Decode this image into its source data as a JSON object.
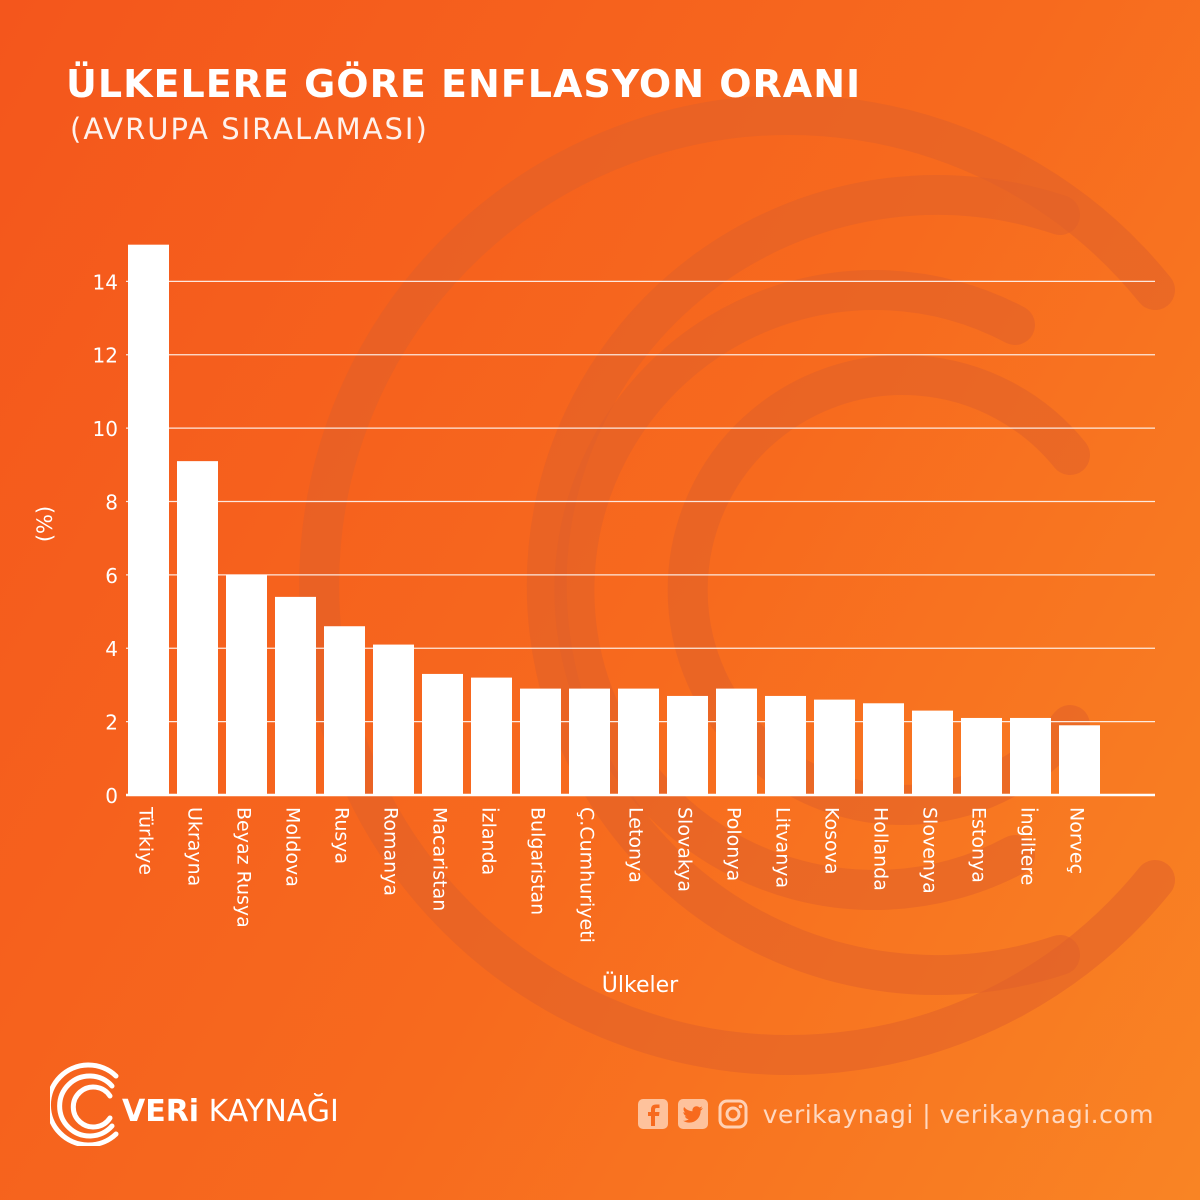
{
  "header": {
    "title": "ÜLKELERE GÖRE ENFLASYON ORANI",
    "subtitle": "(AVRUPA SIRALAMASI)"
  },
  "chart_data": {
    "type": "bar",
    "title": "ÜLKELERE GÖRE ENFLASYON ORANI",
    "subtitle": "(AVRUPA SIRALAMASI)",
    "xlabel": "Ülkeler",
    "ylabel": "(%)",
    "ylim": [
      0,
      15.4
    ],
    "yticks": [
      0,
      2,
      4,
      6,
      8,
      10,
      12,
      14
    ],
    "grid": true,
    "categories": [
      "Türkiye",
      "Ukrayna",
      "Beyaz Rusya",
      "Moldova",
      "Rusya",
      "Romanya",
      "Macaristan",
      "İzlanda",
      "Bulgaristan",
      "Ç.Cumhuriyeti",
      "Letonya",
      "Slovakya",
      "Polonya",
      "Litvanya",
      "Kosova",
      "Hollanda",
      "Slovenya",
      "Estonya",
      "İngiltere",
      "Norveç"
    ],
    "values": [
      15.0,
      9.1,
      6.0,
      5.4,
      4.6,
      4.1,
      3.3,
      3.2,
      2.9,
      2.9,
      2.9,
      2.7,
      2.9,
      2.7,
      2.6,
      2.5,
      2.3,
      2.1,
      2.1,
      1.9
    ]
  },
  "branding": {
    "logo_bold": "VERi",
    "logo_rest": "KAYNAĞI",
    "social_handle": "verikaynagi | verikaynagi.com"
  },
  "colors": {
    "background_start": "#f4561c",
    "background_end": "#f98424",
    "bar": "#ffffff",
    "grid": "#ffffff",
    "deco_ring": "#e0632a"
  },
  "icons": [
    "facebook-icon",
    "twitter-icon",
    "instagram-icon",
    "veri-kaynagi-logo-icon"
  ]
}
